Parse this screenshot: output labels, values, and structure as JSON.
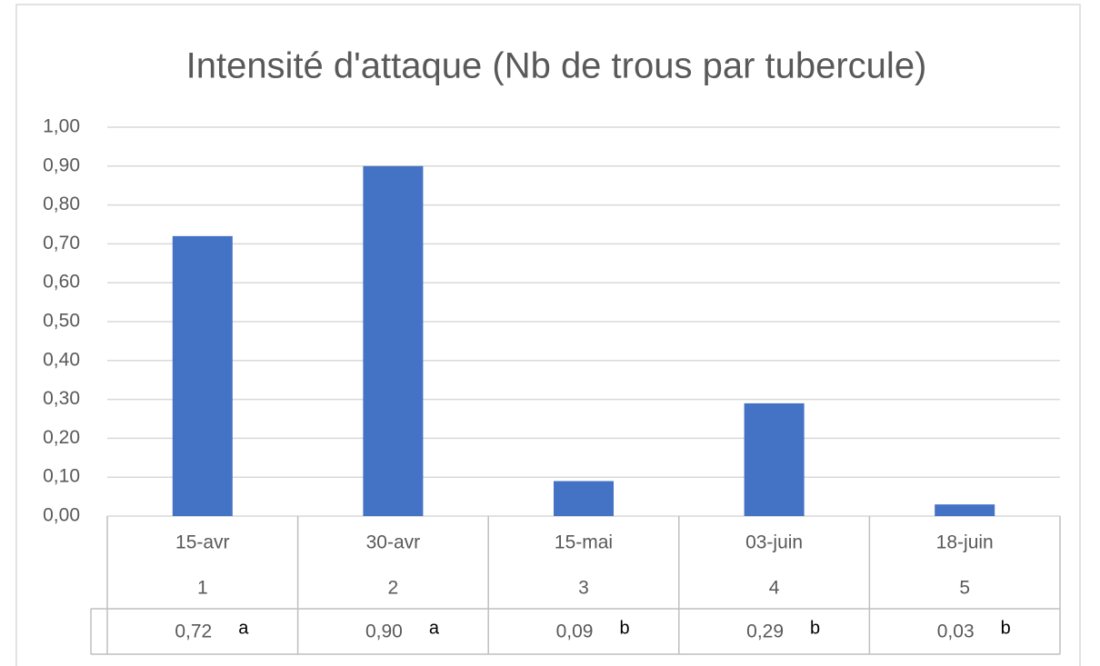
{
  "chart_data": {
    "type": "bar",
    "title": "Intensité d'attaque (Nb de trous par tubercule)",
    "categories": [
      "15-avr",
      "30-avr",
      "15-mai",
      "03-juin",
      "18-juin"
    ],
    "subcategories": [
      "1",
      "2",
      "3",
      "4",
      "5"
    ],
    "values": [
      0.72,
      0.9,
      0.09,
      0.29,
      0.03
    ],
    "value_labels": [
      "0,72",
      "0,90",
      "0,09",
      "0,29",
      "0,03"
    ],
    "letters": [
      "a",
      "a",
      "b",
      "b",
      "b"
    ],
    "color": "#4472c4",
    "ylim": [
      0,
      1
    ],
    "yticks": [
      {
        "value": 0,
        "label": "0,00"
      },
      {
        "value": 0.1,
        "label": "0,10"
      },
      {
        "value": 0.2,
        "label": "0,20"
      },
      {
        "value": 0.3,
        "label": "0,30"
      },
      {
        "value": 0.4,
        "label": "0,40"
      },
      {
        "value": 0.5,
        "label": "0,50"
      },
      {
        "value": 0.6,
        "label": "0,60"
      },
      {
        "value": 0.7,
        "label": "0,70"
      },
      {
        "value": 0.8,
        "label": "0,80"
      },
      {
        "value": 0.9,
        "label": "0,90"
      },
      {
        "value": 1,
        "label": "1,00"
      }
    ],
    "grid": true
  }
}
